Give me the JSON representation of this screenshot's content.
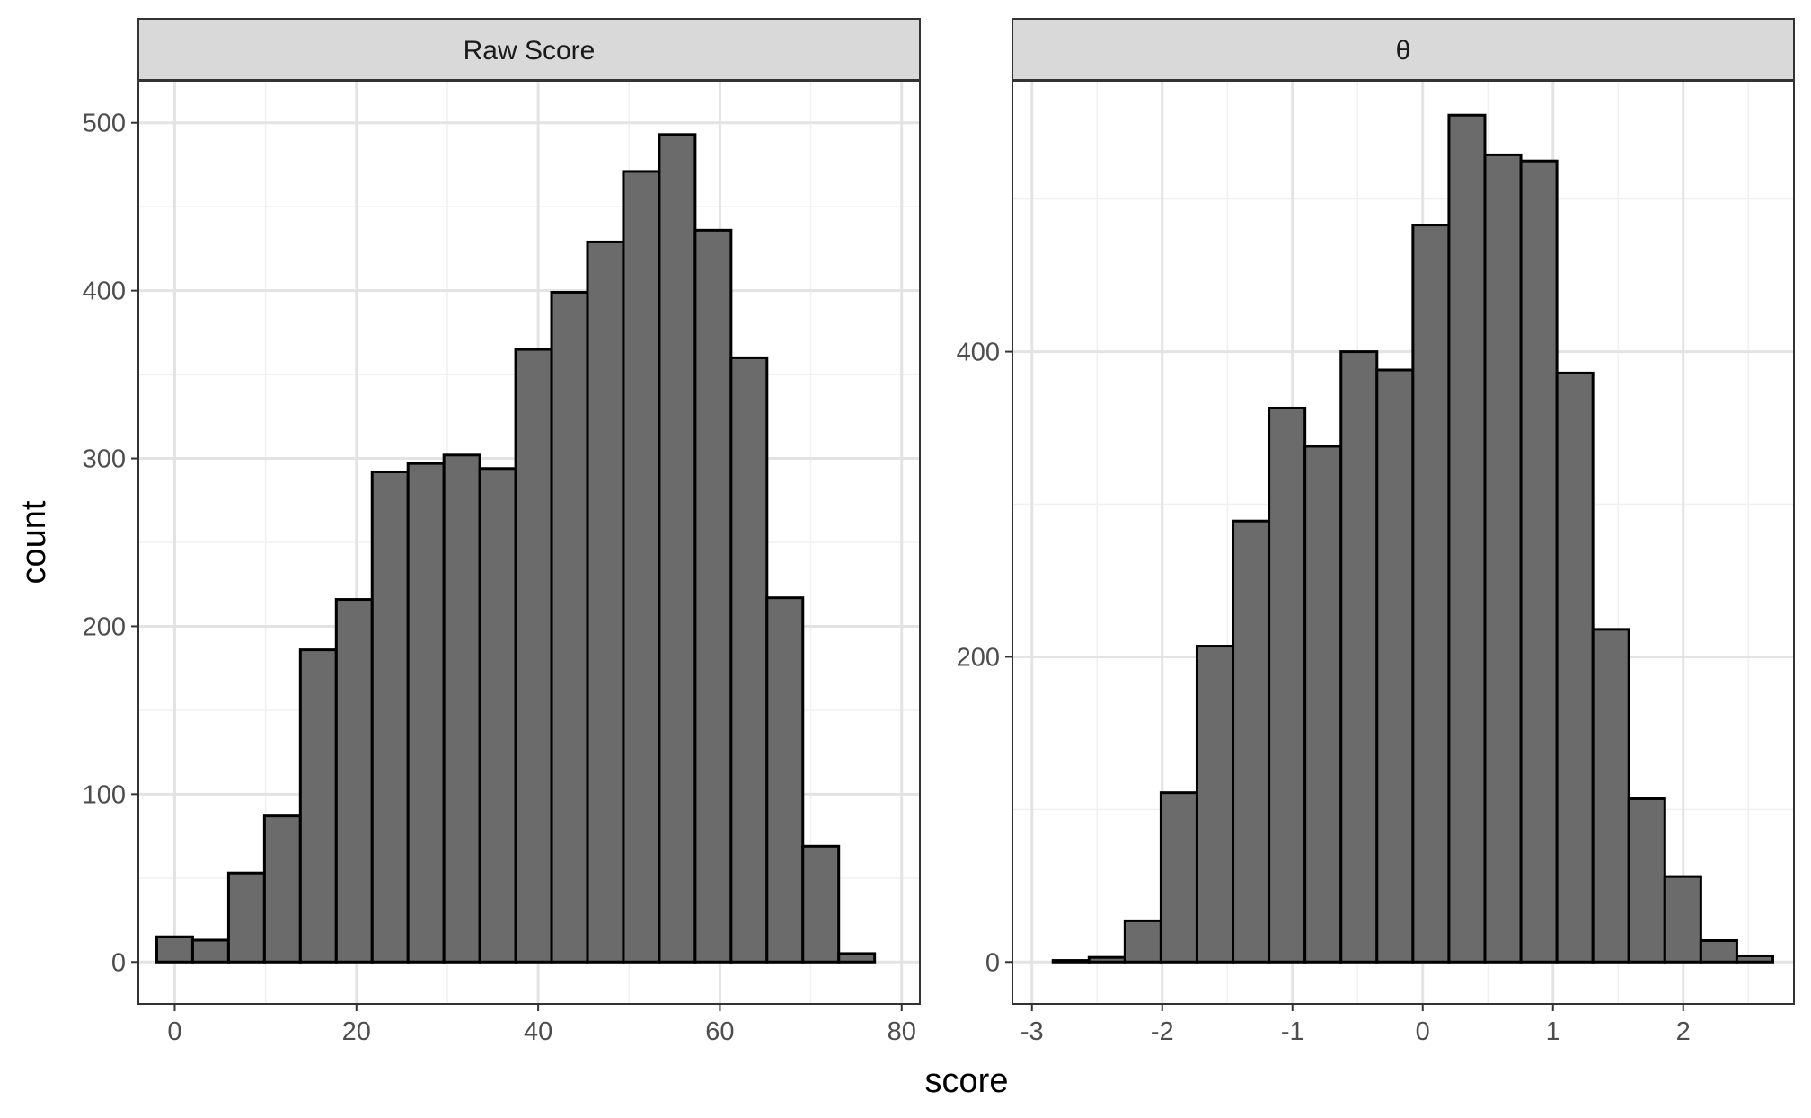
{
  "chart_data": {
    "type": "bar",
    "subtype": "histogram-facets",
    "xlabel": "score",
    "ylabel": "count",
    "grid": true,
    "bar_fill": "#6b6b6b",
    "bar_stroke": "#000000",
    "strip_fill": "#d9d9d9",
    "panels": [
      {
        "title": "Raw Score",
        "xlim": [
          -4,
          82
        ],
        "ylim": [
          -25,
          525
        ],
        "xticks": [
          0,
          20,
          40,
          60,
          80
        ],
        "yticks": [
          0,
          100,
          200,
          300,
          400,
          500
        ],
        "binwidth": 3.95,
        "bins": [
          {
            "x": 0,
            "count": 15
          },
          {
            "x": 3.95,
            "count": 13
          },
          {
            "x": 7.9,
            "count": 53
          },
          {
            "x": 11.85,
            "count": 87
          },
          {
            "x": 15.8,
            "count": 186
          },
          {
            "x": 19.75,
            "count": 216
          },
          {
            "x": 23.7,
            "count": 292
          },
          {
            "x": 27.65,
            "count": 297
          },
          {
            "x": 31.6,
            "count": 302
          },
          {
            "x": 35.55,
            "count": 294
          },
          {
            "x": 39.5,
            "count": 365
          },
          {
            "x": 43.45,
            "count": 399
          },
          {
            "x": 47.4,
            "count": 429
          },
          {
            "x": 51.35,
            "count": 471
          },
          {
            "x": 55.3,
            "count": 493
          },
          {
            "x": 59.25,
            "count": 436
          },
          {
            "x": 63.2,
            "count": 360
          },
          {
            "x": 67.15,
            "count": 217
          },
          {
            "x": 71.1,
            "count": 69
          },
          {
            "x": 75.05,
            "count": 5
          }
        ]
      },
      {
        "title": "θ",
        "xlim": [
          -3.15,
          2.85
        ],
        "ylim": [
          -27.5,
          577.5
        ],
        "xticks": [
          -3,
          -2,
          -1,
          0,
          1,
          2
        ],
        "yticks": [
          0,
          200,
          400
        ],
        "binwidth": 0.2763,
        "bins": [
          {
            "x": -2.7,
            "count": 1
          },
          {
            "x": -2.4237,
            "count": 3
          },
          {
            "x": -2.1474,
            "count": 27
          },
          {
            "x": -1.8711,
            "count": 111
          },
          {
            "x": -1.5948,
            "count": 207
          },
          {
            "x": -1.3185,
            "count": 289
          },
          {
            "x": -1.0422,
            "count": 363
          },
          {
            "x": -0.7659,
            "count": 338
          },
          {
            "x": -0.4896,
            "count": 400
          },
          {
            "x": -0.2133,
            "count": 388
          },
          {
            "x": 0.063,
            "count": 483
          },
          {
            "x": 0.3393,
            "count": 555
          },
          {
            "x": 0.6156,
            "count": 529
          },
          {
            "x": 0.8919,
            "count": 525
          },
          {
            "x": 1.1682,
            "count": 386
          },
          {
            "x": 1.4445,
            "count": 218
          },
          {
            "x": 1.7208,
            "count": 107
          },
          {
            "x": 1.9971,
            "count": 56
          },
          {
            "x": 2.2734,
            "count": 14
          },
          {
            "x": 2.5497,
            "count": 4
          }
        ]
      }
    ]
  }
}
